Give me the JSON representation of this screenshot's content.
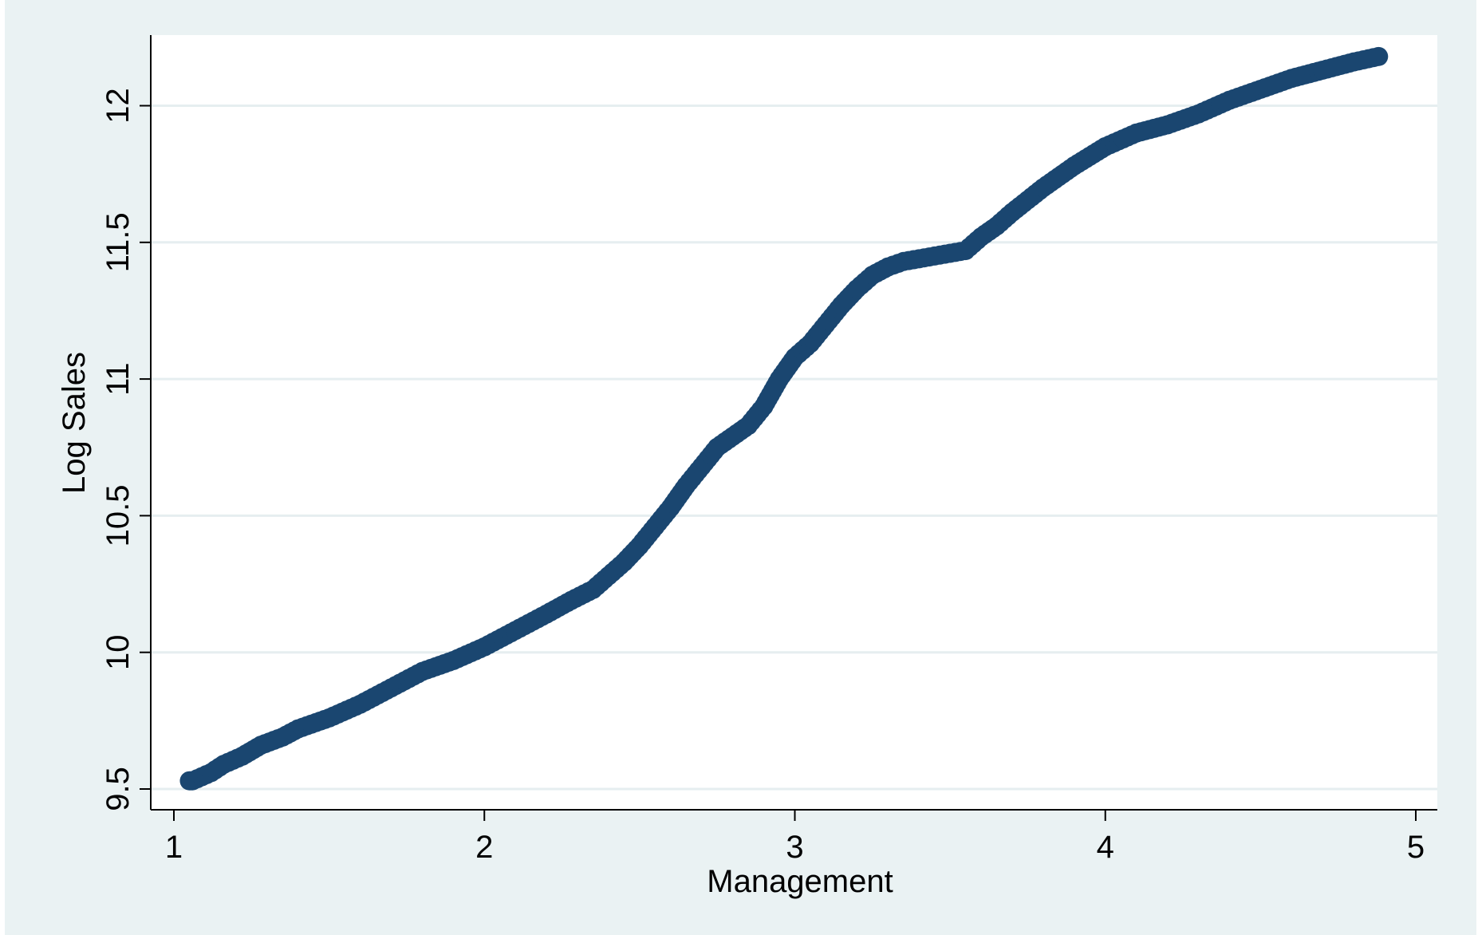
{
  "chart_data": {
    "type": "scatter",
    "title": "",
    "xlabel": "Management",
    "ylabel": "Log Sales",
    "xlim": [
      1,
      5
    ],
    "ylim": [
      9.5,
      12
    ],
    "x_ticks": [
      "1",
      "2",
      "3",
      "4",
      "5"
    ],
    "y_ticks": [
      "9.5",
      "10",
      "10.5",
      "11",
      "11.5",
      "12"
    ],
    "grid": "horizontal",
    "legend": "none",
    "colors": {
      "marker": "#1a4670",
      "background": "#eaf2f3",
      "plot_area": "#ffffff",
      "grid": "#e6eef0"
    },
    "series": [
      {
        "x": [
          1.05,
          1.06,
          1.12,
          1.16,
          1.22,
          1.28,
          1.35,
          1.4,
          1.5,
          1.6,
          1.7,
          1.8,
          1.9,
          2.0,
          2.1,
          2.2,
          2.28,
          2.35,
          2.4,
          2.45,
          2.5,
          2.55,
          2.6,
          2.65,
          2.7,
          2.75,
          2.8,
          2.85,
          2.9,
          2.95,
          3.0,
          3.05,
          3.1,
          3.15,
          3.2,
          3.25,
          3.3,
          3.35,
          3.4,
          3.45,
          3.5,
          3.55,
          3.6,
          3.65,
          3.7,
          3.8,
          3.9,
          4.0,
          4.1,
          4.2,
          4.3,
          4.4,
          4.5,
          4.6,
          4.7,
          4.8,
          4.88
        ],
        "y": [
          9.53,
          9.53,
          9.56,
          9.59,
          9.62,
          9.66,
          9.69,
          9.72,
          9.76,
          9.81,
          9.87,
          9.93,
          9.97,
          10.02,
          10.08,
          10.14,
          10.19,
          10.23,
          10.28,
          10.33,
          10.39,
          10.46,
          10.53,
          10.61,
          10.68,
          10.75,
          10.79,
          10.83,
          10.9,
          11.0,
          11.08,
          11.13,
          11.2,
          11.27,
          11.33,
          11.38,
          11.41,
          11.43,
          11.44,
          11.45,
          11.46,
          11.47,
          11.52,
          11.56,
          11.61,
          11.7,
          11.78,
          11.85,
          11.9,
          11.93,
          11.97,
          12.02,
          12.06,
          12.1,
          12.13,
          12.16,
          12.18
        ]
      }
    ]
  }
}
